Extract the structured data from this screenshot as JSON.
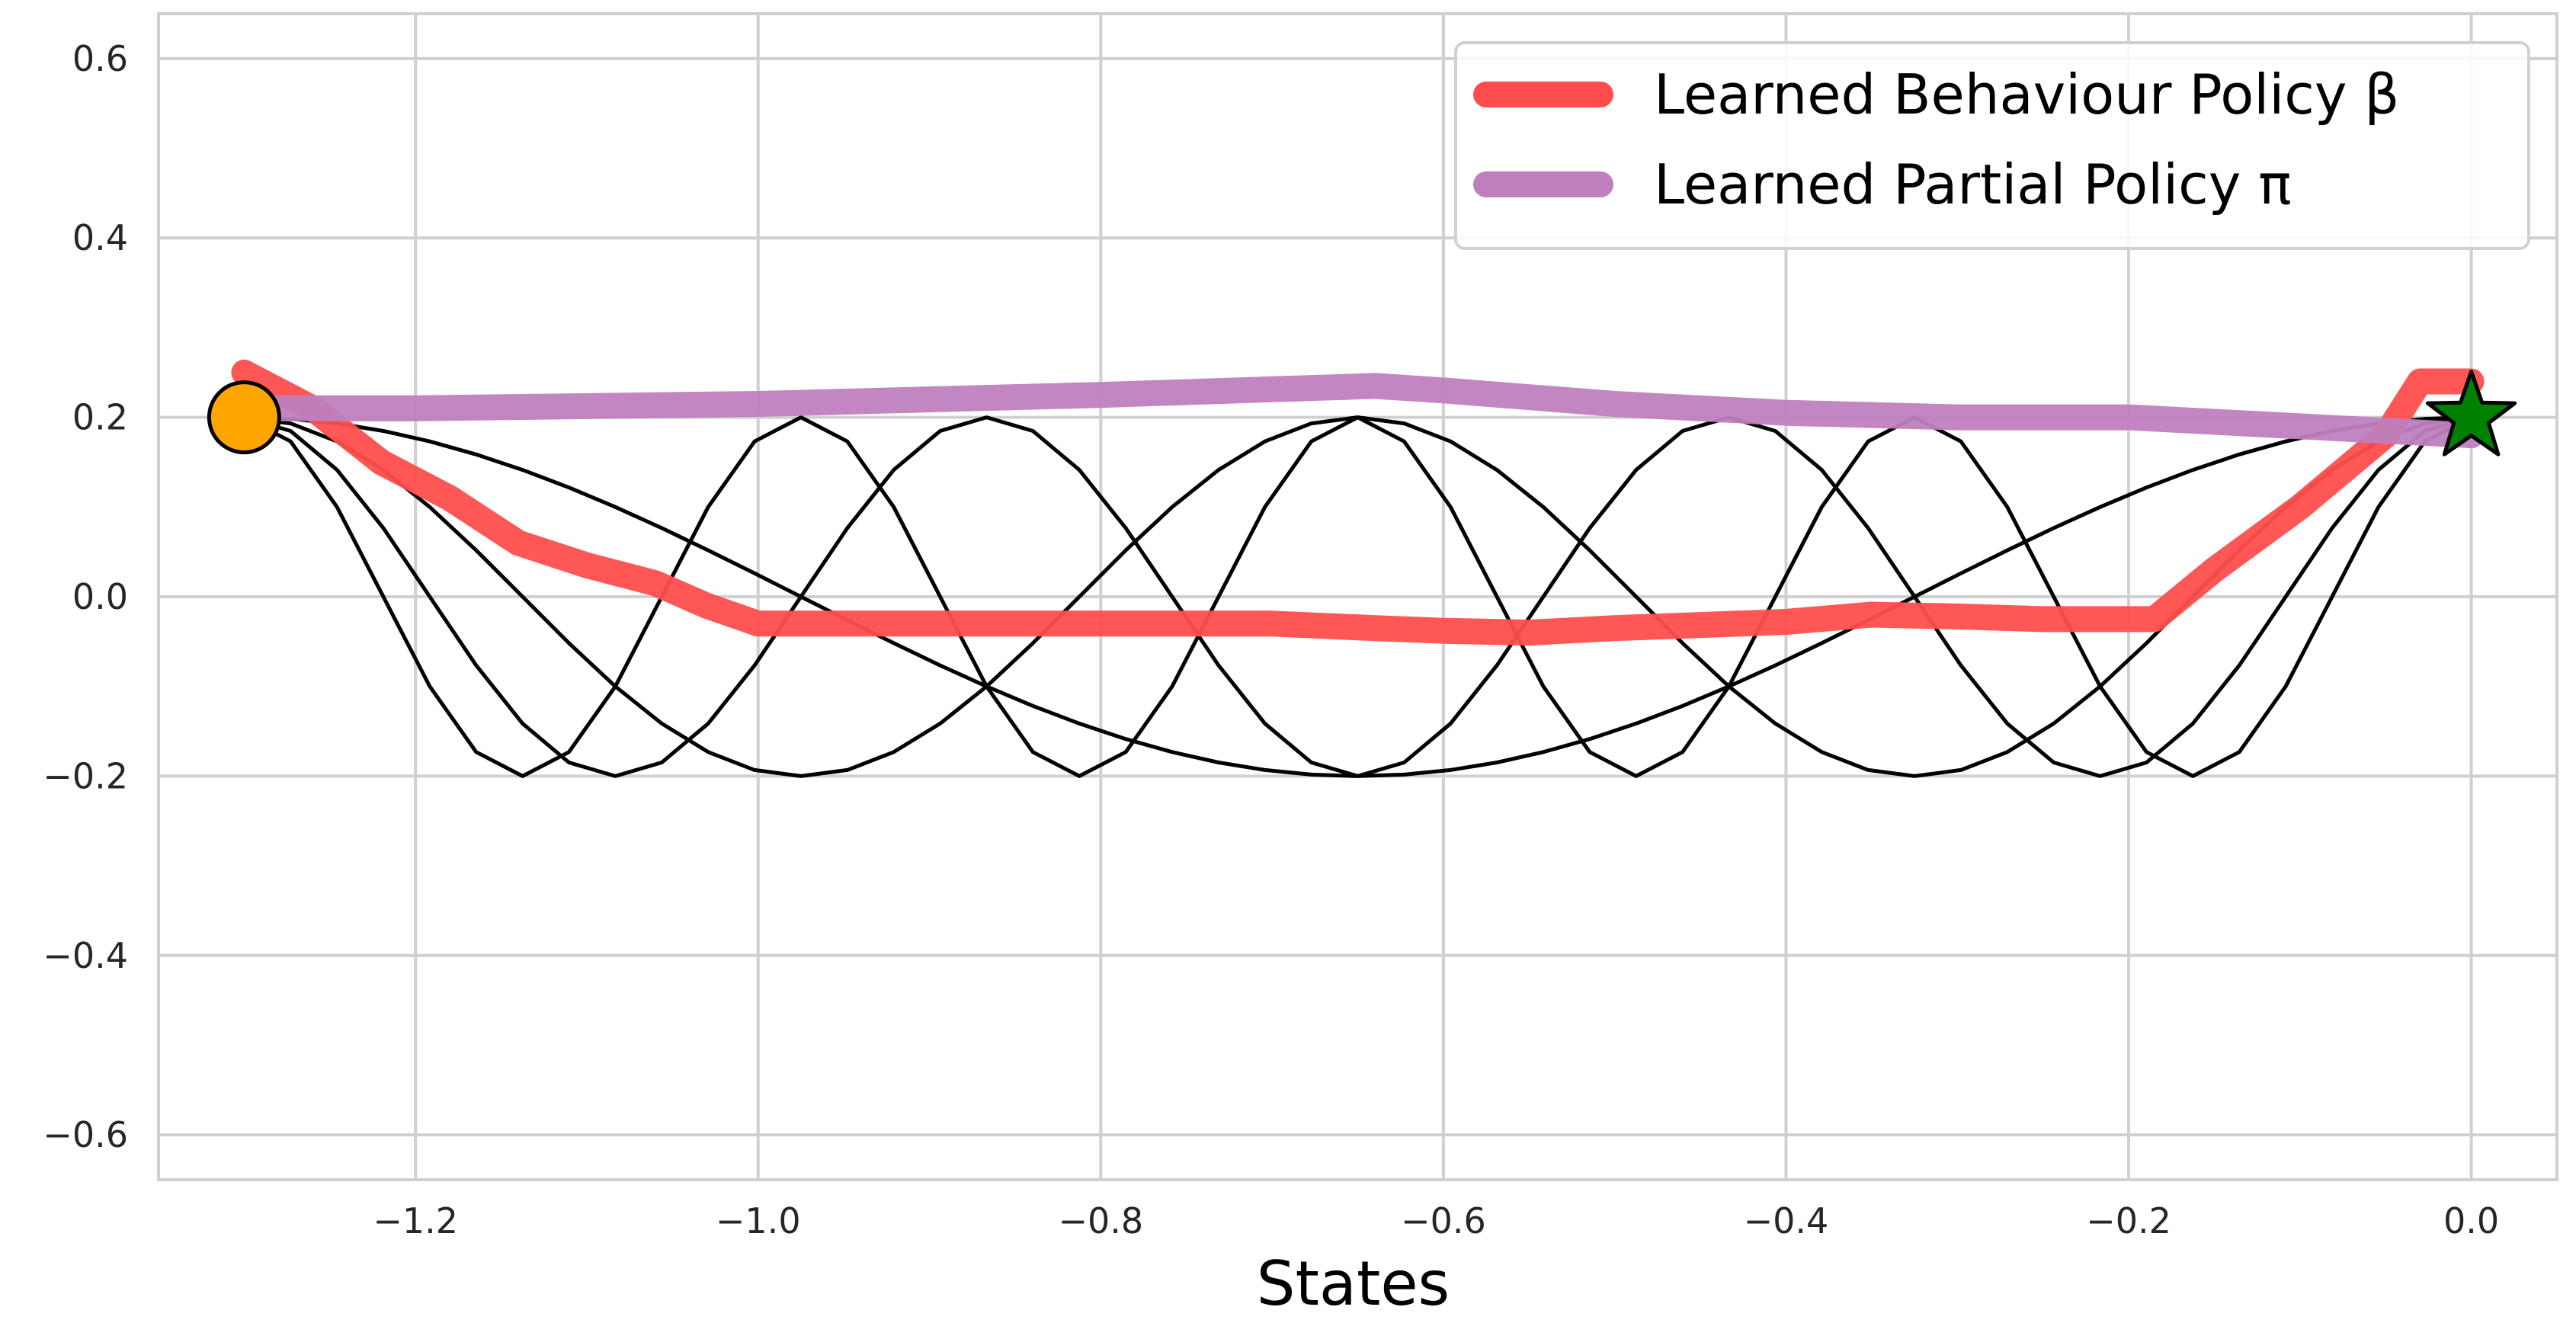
{
  "chart_data": {
    "type": "line",
    "title": "",
    "xlabel": "States",
    "ylabel": "",
    "xlim": [
      -1.35,
      0.05
    ],
    "ylim": [
      -0.65,
      0.65
    ],
    "xticks": [
      -1.2,
      -1.0,
      -0.8,
      -0.6,
      -0.4,
      -0.2,
      0.0
    ],
    "xtick_labels": [
      "−1.2",
      "−1.0",
      "−0.8",
      "−0.6",
      "−0.4",
      "−0.2",
      "0.0"
    ],
    "yticks": [
      -0.6,
      -0.4,
      -0.2,
      0.0,
      0.2,
      0.4,
      0.6
    ],
    "ytick_labels": [
      "−0.6",
      "−0.4",
      "−0.2",
      "0.0",
      "0.2",
      "0.4",
      "0.6"
    ],
    "grid": true,
    "legend_position": "top-right",
    "series": [
      {
        "name": "Learned Behaviour Policy β",
        "color": "#ff4d4d",
        "x": [
          -1.3,
          -1.26,
          -1.22,
          -1.18,
          -1.14,
          -1.1,
          -1.06,
          -1.03,
          -1.0,
          -0.9,
          -0.8,
          -0.7,
          -0.64,
          -0.6,
          -0.55,
          -0.5,
          -0.4,
          -0.35,
          -0.3,
          -0.25,
          -0.2,
          -0.185,
          -0.15,
          -0.1,
          -0.05,
          -0.03,
          0.0
        ],
        "y": [
          0.25,
          0.21,
          0.15,
          0.11,
          0.06,
          0.035,
          0.015,
          -0.01,
          -0.03,
          -0.03,
          -0.03,
          -0.03,
          -0.035,
          -0.038,
          -0.04,
          -0.035,
          -0.028,
          -0.02,
          -0.022,
          -0.025,
          -0.025,
          -0.025,
          0.03,
          0.1,
          0.18,
          0.24,
          0.24
        ]
      },
      {
        "name": "Learned Partial Policy π",
        "color": "#bf7fbf",
        "x": [
          -1.3,
          -1.2,
          -1.0,
          -0.8,
          -0.64,
          -0.6,
          -0.5,
          -0.4,
          -0.3,
          -0.2,
          -0.1,
          0.0
        ],
        "y": [
          0.21,
          0.21,
          0.215,
          0.225,
          0.235,
          0.23,
          0.215,
          0.205,
          0.2,
          0.2,
          0.19,
          0.18
        ]
      }
    ],
    "reference_curves": {
      "description_color": "#000000",
      "amplitude": 0.2,
      "x_start": -1.3,
      "x_end": 0.0,
      "half_cycles": [
        2,
        4,
        6,
        8
      ]
    },
    "markers": [
      {
        "kind": "circle",
        "x": -1.3,
        "y": 0.2,
        "color": "#ffa500"
      },
      {
        "kind": "star",
        "x": 0.0,
        "y": 0.2,
        "color": "#008000"
      }
    ],
    "colors": {
      "grid": "#d0d0d0",
      "frame": "#d0d0d0",
      "legend_border": "#d0d0d0"
    }
  }
}
